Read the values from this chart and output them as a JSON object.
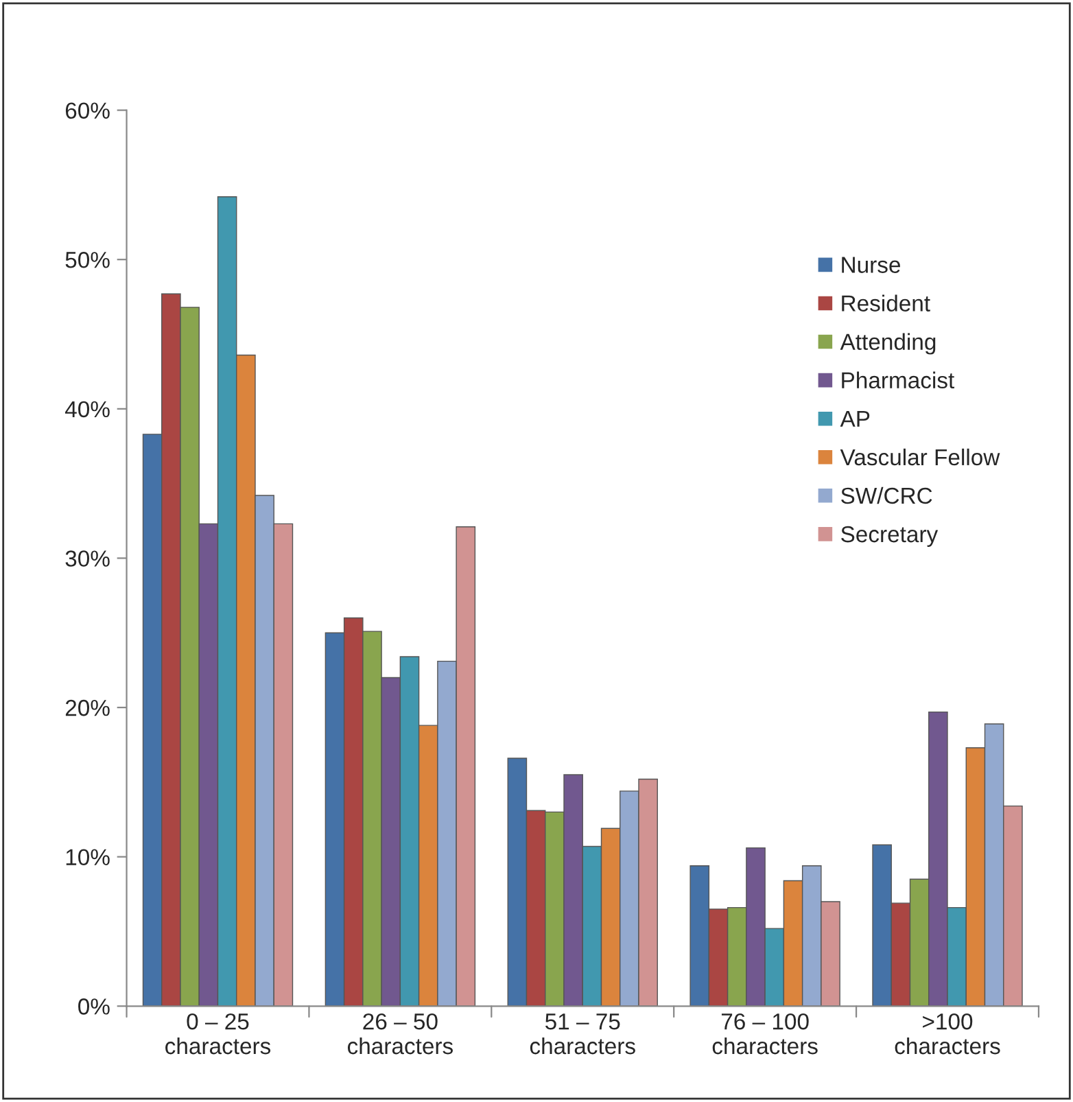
{
  "chart_data": {
    "type": "bar",
    "categories": [
      "0 – 25\ncharacters",
      "26 – 50\ncharacters",
      "51 – 75\ncharacters",
      "76 – 100\ncharacters",
      ">100\ncharacters"
    ],
    "series": [
      {
        "name": "Nurse",
        "color": "#4572a7",
        "values": [
          38.3,
          25.0,
          16.6,
          9.4,
          10.8
        ]
      },
      {
        "name": "Resident",
        "color": "#aa4643",
        "values": [
          47.7,
          26.0,
          13.1,
          6.5,
          6.9
        ]
      },
      {
        "name": "Attending",
        "color": "#89a54e",
        "values": [
          46.8,
          25.1,
          13.0,
          6.6,
          8.5
        ]
      },
      {
        "name": "Pharmacist",
        "color": "#71588f",
        "values": [
          32.3,
          22.0,
          15.5,
          10.6,
          19.7
        ]
      },
      {
        "name": "AP",
        "color": "#4198af",
        "values": [
          54.2,
          23.4,
          10.7,
          5.2,
          6.6
        ]
      },
      {
        "name": "Vascular Fellow",
        "color": "#db843d",
        "values": [
          43.6,
          18.8,
          11.9,
          8.4,
          17.3
        ]
      },
      {
        "name": "SW/CRC",
        "color": "#93a9cf",
        "values": [
          34.2,
          23.1,
          14.4,
          9.4,
          18.9
        ]
      },
      {
        "name": "Secretary",
        "color": "#d19392",
        "values": [
          32.3,
          32.1,
          15.2,
          7.0,
          13.4
        ]
      }
    ],
    "ylim": [
      0,
      60
    ],
    "yticks": [
      {
        "value": 0,
        "label": "0%"
      },
      {
        "value": 10,
        "label": "10%"
      },
      {
        "value": 20,
        "label": "20%"
      },
      {
        "value": 30,
        "label": "30%"
      },
      {
        "value": 40,
        "label": "40%"
      },
      {
        "value": 50,
        "label": "50%"
      },
      {
        "value": 60,
        "label": "60%"
      }
    ],
    "grid": false,
    "legend": "top right"
  }
}
